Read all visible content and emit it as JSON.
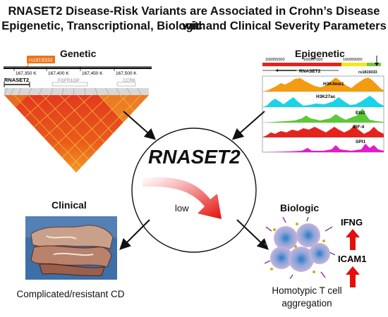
{
  "title": {
    "line1": "RNASET2 Disease-Risk Variants are Associated in Crohn’s Disease with",
    "line2": "Epigenetic, Transcriptional, Biologic and Clinical Severity Parameters"
  },
  "genetic": {
    "heading": "Genetic",
    "snp": "rs1819333",
    "ticks": [
      "167,350 K",
      "167,400 K",
      "167,450 K",
      "167,500 K"
    ],
    "genes": [
      "RNASET2",
      "FGFR1OP",
      "CCR6"
    ]
  },
  "epigenetic": {
    "heading": "Epigenetic",
    "coords": [
      "166955000",
      "166957000",
      "166959000"
    ],
    "gene": "RNASET2",
    "snp": "rs1819333",
    "tracks": [
      "H3K4me1",
      "H3K27ac",
      "Ets1",
      "IRF-4",
      "SPI1"
    ],
    "colors": [
      "#f39c12",
      "#19d3e8",
      "#5cc936",
      "#e5231d",
      "#e21cc8"
    ]
  },
  "center": {
    "gene": "RNASET2",
    "level": "low"
  },
  "clinical": {
    "heading": "Clinical",
    "caption": "Complicated/resistant CD"
  },
  "biologic": {
    "heading": "Biologic",
    "marker1": "IFNG",
    "marker2": "ICAM1",
    "caption_line1": "Homotypic T cell",
    "caption_line2": "aggregation"
  }
}
